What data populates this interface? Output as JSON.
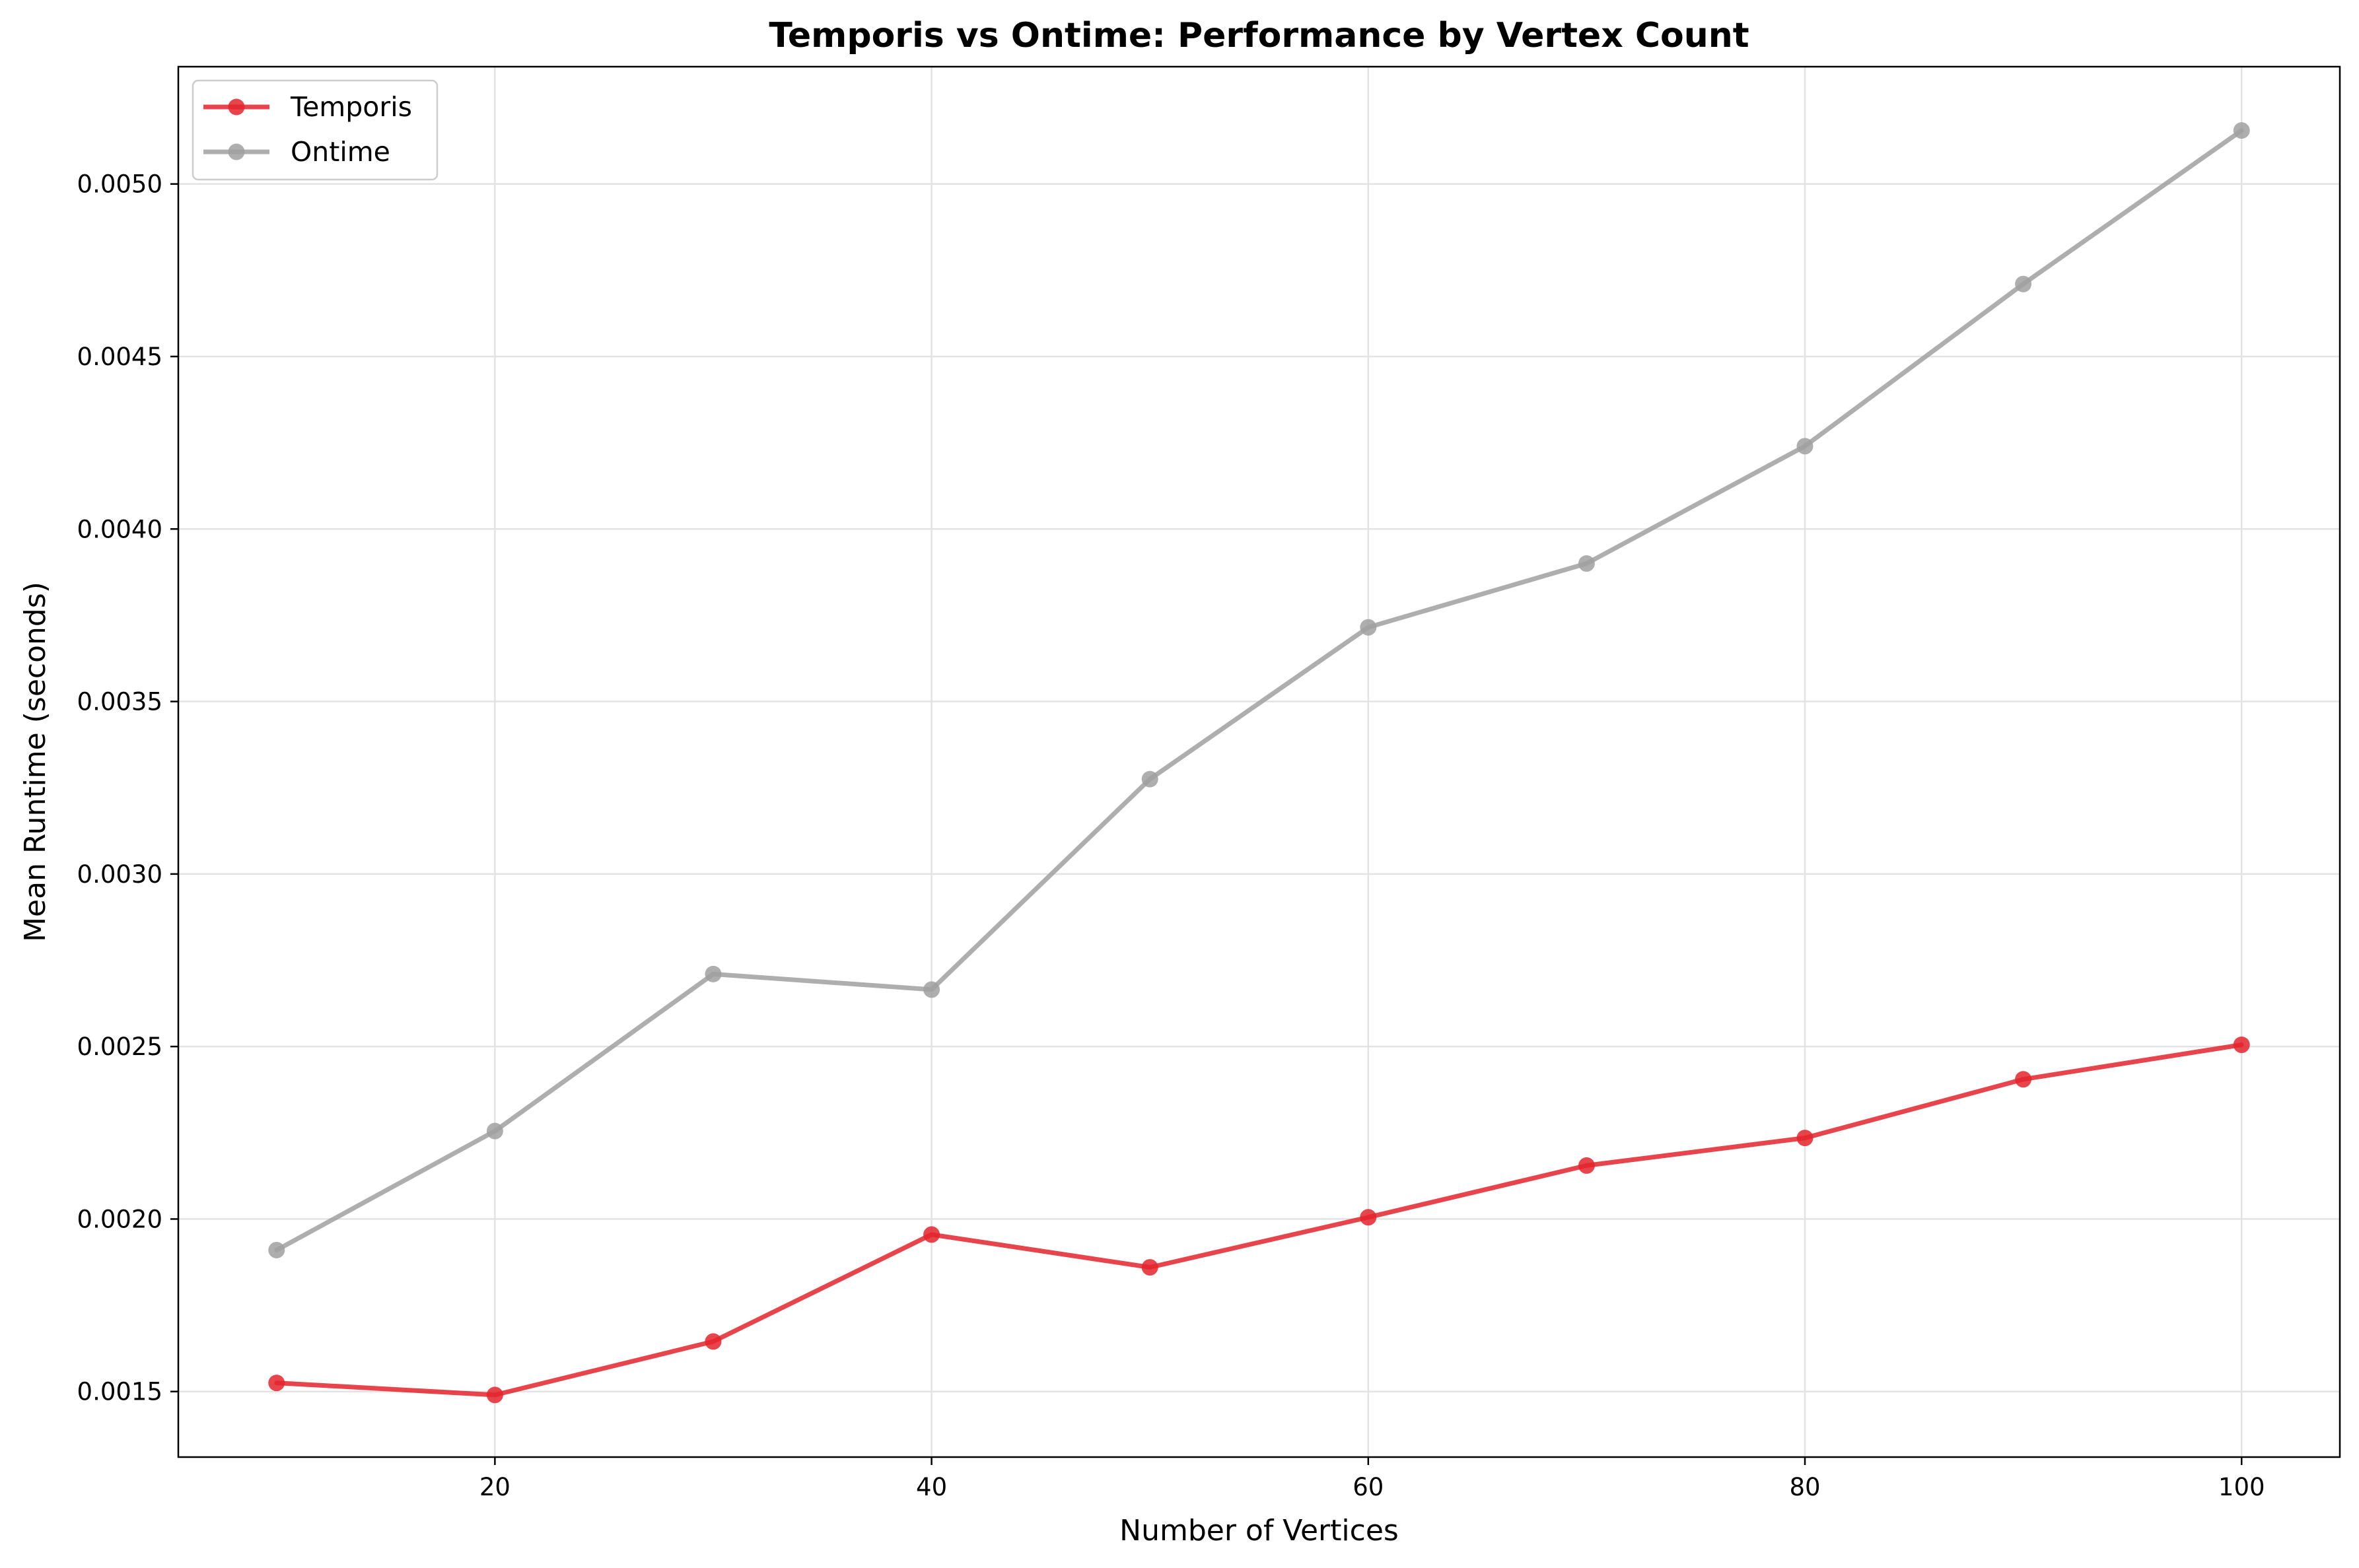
{
  "chart_data": {
    "type": "line",
    "title": "Temporis vs Ontime: Performance by Vertex Count",
    "xlabel": "Number of Vertices",
    "ylabel": "Mean Runtime (seconds)",
    "x": [
      10,
      20,
      30,
      40,
      50,
      60,
      70,
      80,
      90,
      100
    ],
    "xlim": [
      5.5,
      104.5
    ],
    "ylim": [
      0.00131,
      0.00534
    ],
    "xticks": [
      20,
      40,
      60,
      80,
      100
    ],
    "xtick_labels": [
      "20",
      "40",
      "60",
      "80",
      "100"
    ],
    "yticks": [
      0.0015,
      0.002,
      0.0025,
      0.003,
      0.0035,
      0.004,
      0.0045,
      0.005
    ],
    "ytick_labels": [
      "0.0015",
      "0.0020",
      "0.0025",
      "0.0030",
      "0.0035",
      "0.0040",
      "0.0045",
      "0.0050"
    ],
    "grid": true,
    "legend_position": "top-left",
    "series": [
      {
        "name": "Temporis",
        "color": "#e3242b",
        "values": [
          0.001525,
          0.00149,
          0.001645,
          0.001955,
          0.00186,
          0.002005,
          0.002155,
          0.002235,
          0.002405,
          0.002505
        ]
      },
      {
        "name": "Ontime",
        "color": "#a0a0a0",
        "values": [
          0.00191,
          0.002255,
          0.00271,
          0.002665,
          0.003275,
          0.003715,
          0.0039,
          0.00424,
          0.00471,
          0.005155
        ]
      }
    ]
  }
}
